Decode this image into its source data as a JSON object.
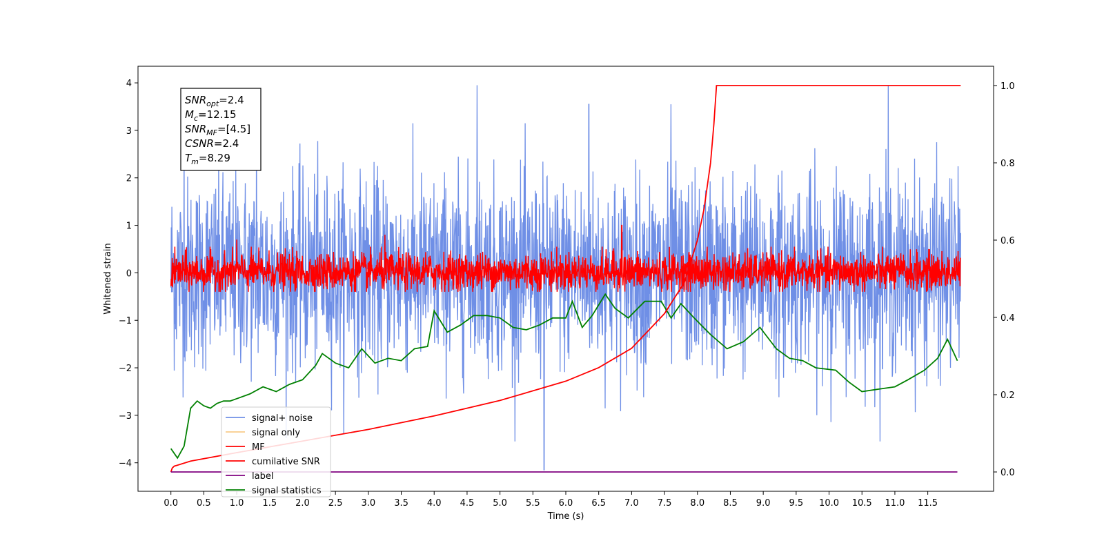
{
  "chart_data": {
    "type": "line",
    "xlabel": "Time (s)",
    "ylabel_left": "Whitened strain",
    "ylabel_right": "",
    "xlim": [
      -0.5,
      12.5
    ],
    "ylim_left": [
      -4.6,
      4.35
    ],
    "ylim_right": [
      -0.05,
      1.05
    ],
    "x_ticks": [
      0.0,
      0.5,
      1.0,
      1.5,
      2.0,
      2.5,
      3.0,
      3.5,
      4.0,
      4.5,
      5.0,
      5.5,
      6.0,
      6.5,
      7.0,
      7.5,
      8.0,
      8.5,
      9.0,
      9.5,
      10.0,
      10.5,
      11.0,
      11.5
    ],
    "x_tick_labels": [
      "0.0",
      "0.5",
      "1.0",
      "1.5",
      "2.0",
      "2.5",
      "3.0",
      "3.5",
      "4.0",
      "4.5",
      "5.0",
      "5.5",
      "6.0",
      "6.5",
      "7.0",
      "7.5",
      "8.0",
      "8.5",
      "9.0",
      "9.5",
      "10.0",
      "10.5",
      "11.0",
      "11.5"
    ],
    "y_left_ticks": [
      4,
      3,
      2,
      1,
      0,
      -1,
      -2,
      -3,
      -4
    ],
    "y_left_tick_labels": [
      "4",
      "3",
      "2",
      "1",
      "0",
      "−1",
      "−2",
      "−3",
      "−4"
    ],
    "y_right_ticks": [
      1.0,
      0.8,
      0.6,
      0.4,
      0.2,
      0.0
    ],
    "y_right_tick_labels": [
      "1.0",
      "0.8",
      "0.6",
      "0.4",
      "0.2",
      "0.0"
    ],
    "grid": false,
    "legend_position": "lower-left",
    "colors": {
      "signal_noise": "#6f8fe6",
      "signal_only": "#f5b75a",
      "mf": "#ff0000",
      "cumulative_snr": "#ff0000",
      "label": "#800080",
      "signal_statistics": "#008000"
    },
    "series": [
      {
        "name": "signal+ noise",
        "axis": "left",
        "style": "noise",
        "x_start": 0.0,
        "x_end": 12.0,
        "approx_mean": 0.0,
        "approx_envelope": [
          -4.15,
          3.95
        ],
        "peaks": [
          [
            4.65,
            3.95
          ],
          [
            10.9,
            3.95
          ],
          [
            5.67,
            -4.15
          ],
          [
            0.2,
            3.3
          ],
          [
            1.3,
            3.3
          ],
          [
            7.6,
            3.55
          ],
          [
            6.35,
            3.55
          ]
        ]
      },
      {
        "name": "signal only",
        "axis": "left",
        "values": [],
        "note": ""
      },
      {
        "name": "MF",
        "axis": "left",
        "style": "noise",
        "x_start": 0.0,
        "x_end": 12.0,
        "approx_mean": 0.0,
        "approx_envelope": [
          -0.4,
          1.0
        ],
        "peaks": [
          [
            6.85,
            1.0
          ],
          [
            3.25,
            0.8
          ],
          [
            1.0,
            0.7
          ]
        ]
      },
      {
        "name": "cumilative SNR",
        "axis": "right",
        "x": [
          0.0,
          0.02,
          0.05,
          0.3,
          1.0,
          2.0,
          3.0,
          4.0,
          5.0,
          6.0,
          6.5,
          7.0,
          7.5,
          7.8,
          8.0,
          8.1,
          8.2,
          8.25,
          8.29,
          12.0
        ],
        "values": [
          0.0,
          0.01,
          0.015,
          0.028,
          0.05,
          0.08,
          0.11,
          0.145,
          0.185,
          0.235,
          0.27,
          0.32,
          0.41,
          0.49,
          0.6,
          0.68,
          0.8,
          0.9,
          1.0,
          1.0
        ]
      },
      {
        "name": "label",
        "axis": "right",
        "x": [
          0.0,
          11.95
        ],
        "values": [
          0.0,
          0.0
        ]
      },
      {
        "name": "signal statistics",
        "axis": "left",
        "x": [
          0.0,
          0.1,
          0.2,
          0.3,
          0.4,
          0.5,
          0.6,
          0.7,
          0.8,
          0.9,
          1.0,
          1.2,
          1.4,
          1.6,
          1.8,
          2.0,
          2.2,
          2.3,
          2.5,
          2.7,
          2.9,
          3.1,
          3.3,
          3.5,
          3.7,
          3.9,
          4.0,
          4.2,
          4.4,
          4.6,
          4.8,
          5.0,
          5.2,
          5.4,
          5.6,
          5.8,
          6.0,
          6.1,
          6.25,
          6.4,
          6.6,
          6.75,
          6.95,
          7.2,
          7.45,
          7.6,
          7.75,
          7.95,
          8.2,
          8.45,
          8.7,
          8.95,
          9.2,
          9.4,
          9.6,
          9.8,
          10.1,
          10.3,
          10.5,
          10.75,
          11.0,
          11.2,
          11.45,
          11.65,
          11.8,
          11.95
        ],
        "values": [
          -3.7,
          -3.9,
          -3.65,
          -2.85,
          -2.7,
          -2.8,
          -2.85,
          -2.75,
          -2.7,
          -2.7,
          -2.65,
          -2.55,
          -2.4,
          -2.5,
          -2.35,
          -2.25,
          -1.95,
          -1.7,
          -1.9,
          -2.0,
          -1.6,
          -1.9,
          -1.8,
          -1.85,
          -1.6,
          -1.55,
          -0.8,
          -1.25,
          -1.1,
          -0.9,
          -0.9,
          -0.95,
          -1.15,
          -1.2,
          -1.1,
          -0.95,
          -0.95,
          -0.6,
          -1.15,
          -0.9,
          -0.45,
          -0.75,
          -0.95,
          -0.6,
          -0.6,
          -0.95,
          -0.65,
          -0.95,
          -1.3,
          -1.6,
          -1.45,
          -1.15,
          -1.6,
          -1.8,
          -1.85,
          -2.0,
          -2.05,
          -2.3,
          -2.5,
          -2.45,
          -2.4,
          -2.25,
          -2.05,
          -1.8,
          -1.4,
          -1.85
        ]
      }
    ],
    "annotation_box": {
      "lines": [
        {
          "var": "SNR",
          "sub": "opt",
          "value": "=2.4"
        },
        {
          "var": "M",
          "sub": "c",
          "value": "=12.15"
        },
        {
          "var": "SNR",
          "sub": "MF",
          "value": "=[4.5]"
        },
        {
          "var": "CSNR",
          "sub": "",
          "value": "=2.4"
        },
        {
          "var": "T",
          "sub": "m",
          "value": "=8.29"
        }
      ]
    },
    "legend_entries": [
      "signal+ noise",
      "signal only",
      "MF",
      "cumilative SNR",
      "label",
      "signal statistics"
    ]
  }
}
